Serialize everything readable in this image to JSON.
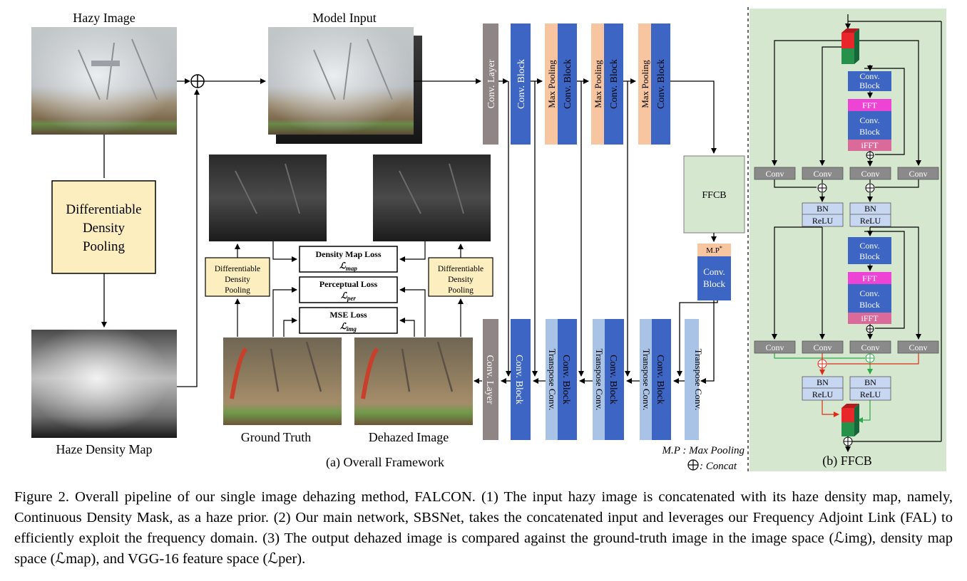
{
  "images": {
    "hazy": "Hazy Image",
    "model_input": "Model Input",
    "density_map": "Haze Density Map",
    "ground_truth": "Ground Truth",
    "dehazed": "Dehazed Image"
  },
  "blocks": {
    "ddp_main": [
      "Differentiable",
      "Density",
      "Pooling"
    ],
    "ddp_small": [
      "Differentiable",
      "Density",
      "Pooling"
    ],
    "conv_layer": "Conv. Layer",
    "conv_block": "Conv. Block",
    "max_pooling": "Max Pooling",
    "transpose_conv": "Transpose Conv.",
    "ffcb": "FFCB",
    "mp_label": "M.P",
    "mp_sup": "*",
    "conv_block_lines": [
      "Conv.",
      "Block"
    ],
    "fft": "FFT",
    "ifft": "iFFT",
    "conv": "Conv",
    "bn": "BN",
    "relu": "ReLU"
  },
  "losses": {
    "density": {
      "label": "Density Map Loss",
      "symbol": "ℒ",
      "sub": "map"
    },
    "perceptual": {
      "label": "Perceptual Loss",
      "symbol": "ℒ",
      "sub": "per"
    },
    "mse": {
      "label": "MSE Loss",
      "symbol": "ℒ",
      "sub": "img"
    }
  },
  "legend": {
    "mp": "M.P : Max Pooling",
    "concat": ": Concat"
  },
  "panels": {
    "a": "(a) Overall Framework",
    "b": "(b) FFCB"
  },
  "caption": {
    "label": "Figure 2.",
    "text": "Overall pipeline of our single image dehazing method, FALCON. (1) The input hazy image is concatenated with its haze density map, namely, Continuous Density Mask, as a haze prior. (2) Our main network, SBSNet, takes the concatenated input and leverages our Frequency Adjoint Link (FAL) to efficiently exploit the frequency domain. (3) The output dehazed image is compared against the ground-truth image in the image space (ℒimg), density map space (ℒmap), and VGG-16 feature space (ℒper)."
  },
  "colors": {
    "conv_block": "#3d65c4",
    "conv_layer": "#8e8584",
    "max_pool": "#f7c59f",
    "transpose": "#a8c3e6",
    "ffcb": "#d5e8cf",
    "ddp": "#fdeec0",
    "fft": "#ee44d6",
    "ifft": "#d96a9a",
    "bn": "#c8d7f1",
    "small_conv": "#8a8a8a",
    "arrow_red": "#e02b18",
    "arrow_green": "#2fa84a",
    "cube_red": "#e8272b",
    "cube_green": "#26914a"
  }
}
